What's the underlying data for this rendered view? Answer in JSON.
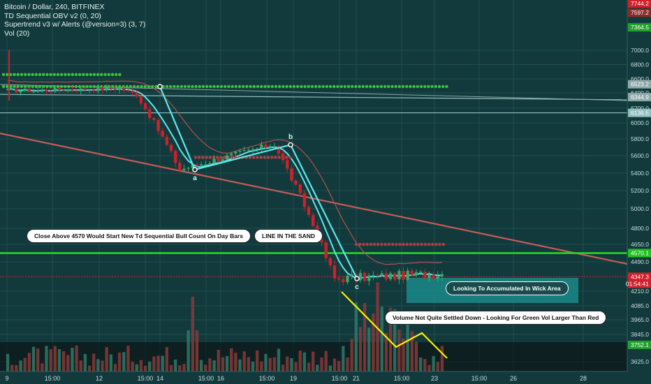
{
  "header": {
    "lines": [
      "Bitcoin / Dollar, 240, BITFINEX",
      "TD Sequential OBV v2 (0, 20)",
      "Supertrend v3 w/ Alerts (@version=3) (3, 7)",
      "Vol (20)"
    ]
  },
  "colors": {
    "background": "#123a3c",
    "bull": "#3aa86b",
    "bear": "#d0202a",
    "wave": "#5ce8ee",
    "support": "#22e022",
    "trend": "#c85a56",
    "highlight": "#1b8a8a",
    "annotation": "#ffee00"
  },
  "price_axis": {
    "ticks": [
      "7000.0",
      "6800.0",
      "6600.0",
      "6400.0",
      "6200.0",
      "6000.0",
      "5800.0",
      "5600.0",
      "5400.0",
      "5200.0",
      "5000.0",
      "4800.0",
      "4650.0",
      "4490.0",
      "4210.0",
      "4085.0",
      "3965.0",
      "3845.0",
      "3625.0"
    ],
    "badges": [
      {
        "text": "7744.2",
        "price": 7744.2,
        "color": "#d0202a"
      },
      {
        "text": "7597.2",
        "price": 7597.2,
        "color": "#8a2a2a"
      },
      {
        "text": "7364.5",
        "price": 7364.5,
        "color": "#22a02a"
      },
      {
        "text": "6523.2",
        "price": 6523.2,
        "color": "#8fa8a8"
      },
      {
        "text": "6344.9",
        "price": 6344.9,
        "color": "#8fa8a8"
      },
      {
        "text": "6136.5",
        "price": 6136.5,
        "color": "#8fbfbf"
      },
      {
        "text": "4570.1",
        "price": 4570.1,
        "color": "#22c022"
      },
      {
        "text": "4347.3",
        "price": 4347.3,
        "color": "#d0202a"
      },
      {
        "text": "01:54:41",
        "price": 4280,
        "color": "#d0202a"
      },
      {
        "text": "3752.1",
        "price": 3752.1,
        "color": "#22a02a"
      }
    ]
  },
  "time_axis": {
    "labels": [
      "9",
      "15:00",
      "12",
      "15:00",
      "14",
      "15:00",
      "16",
      "15:00",
      "19",
      "15:00",
      "21",
      "15:00",
      "23",
      "15:00",
      "26",
      "28"
    ]
  },
  "callouts": {
    "td_note": "Close Above 4570 Would Start New Td Sequential Bull Count On Day Bars",
    "line_sand": "LINE IN THE SAND",
    "wick": "Looking To Accumulated In Wick Area",
    "volume": "Volume Not Quite Settled Down - Looking For Green Vol Larger Than Red"
  },
  "wave_labels": {
    "a": "a",
    "b": "b",
    "c": "c"
  },
  "chart_data": {
    "type": "candlestick",
    "symbol": "Bitcoin / Dollar, 240, BITFINEX",
    "x_labels": [
      "9",
      "15:00",
      "12",
      "15:00",
      "14",
      "15:00",
      "16",
      "15:00",
      "19",
      "15:00",
      "21",
      "15:00",
      "23",
      "15:00",
      "26",
      "28"
    ],
    "support_level": 4570.1,
    "last_price": 4347.3,
    "wave_points": [
      {
        "label": "",
        "price": 6490
      },
      {
        "label": "a",
        "price": 5440
      },
      {
        "label": "b",
        "price": 5730
      },
      {
        "label": "c",
        "price": 4330
      }
    ],
    "segments": [
      {
        "bars": 26,
        "start": 6430,
        "end": 6460,
        "noise": 60
      },
      {
        "bars": 4,
        "start": 6460,
        "end": 6380,
        "noise": 50
      },
      {
        "bars": 10,
        "start": 6380,
        "end": 5440,
        "noise": 70
      },
      {
        "bars": 22,
        "start": 5440,
        "end": 5740,
        "noise": 70
      },
      {
        "bars": 14,
        "start": 5740,
        "end": 4330,
        "noise": 80
      },
      {
        "bars": 26,
        "start": 4330,
        "end": 4380,
        "noise": 90
      }
    ],
    "volume_peaks": [
      {
        "bar": 43,
        "height": 0.63
      },
      {
        "bar": 86,
        "height": 0.75
      },
      {
        "bar": 81,
        "height": 0.5
      }
    ]
  }
}
